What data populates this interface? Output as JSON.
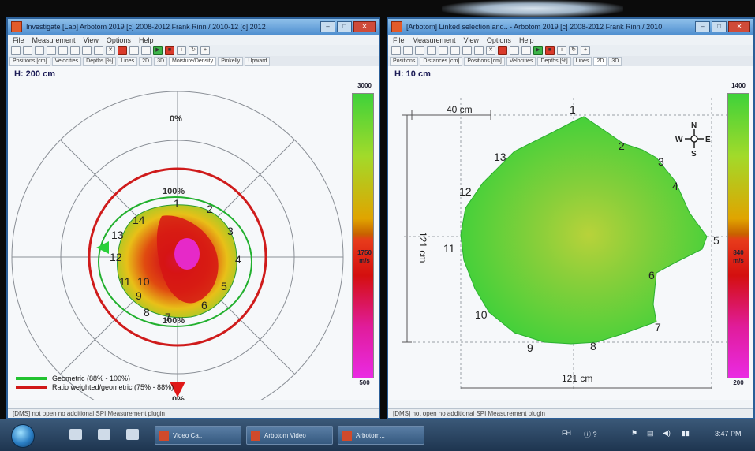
{
  "left_window": {
    "title": "Investigate [Lab] Arbotom 2019 [c] 2008-2012 Frank Rinn / 2010-12 [c] 2012",
    "menu": [
      "File",
      "Measurement",
      "View",
      "Options",
      "Help"
    ],
    "tabs": [
      "Positions [cm]",
      "Velocities",
      "Depths [%]",
      "Lines",
      "2D",
      "3D",
      "Moisture/Density",
      "Pinkelly",
      "Upward"
    ],
    "height_label": "H: 200 cm",
    "scale_top": "3000",
    "scale_mid": "1750",
    "scale_unit": "m/s",
    "scale_bottom": "500",
    "ring_labels": {
      "outer": "0%",
      "inner_top": "100%",
      "inner_bottom": "100%",
      "bottom": "0%"
    },
    "sensor_numbers": [
      "1",
      "2",
      "3",
      "4",
      "5",
      "6",
      "7",
      "8",
      "9",
      "10",
      "11",
      "12",
      "13",
      "14"
    ],
    "legend": [
      {
        "label": "Geometric (88% - 100%)",
        "color": "#22c230"
      },
      {
        "label": "Ratio weighted/geometric (75% - 88%)",
        "color": "#d01818"
      }
    ],
    "status": "[DMS] not open no additional SPI Measurement plugin"
  },
  "right_window": {
    "title": "[Arbotom] Linked selection and.. - Arbotom 2019 [c] 2008-2012 Frank Rinn / 2010",
    "menu": [
      "File",
      "Measurement",
      "View",
      "Options",
      "Help"
    ],
    "tabs": [
      "Positions",
      "Distances [cm]",
      "Positions [cm]",
      "Velocities",
      "Depths [%]",
      "Lines",
      "2D",
      "3D"
    ],
    "height_label": "H: 10 cm",
    "width_top": "40 cm",
    "height_dim": "121 cm",
    "width_bottom": "121 cm",
    "scale_top": "1400",
    "scale_mid": "840",
    "scale_unit": "m/s",
    "scale_bottom": "200",
    "compass": {
      "n": "N",
      "s": "S",
      "e": "E",
      "w": "W"
    },
    "sensor_numbers": [
      "1",
      "2",
      "3",
      "4",
      "5",
      "6",
      "7",
      "8",
      "9",
      "10",
      "11",
      "12",
      "13"
    ],
    "status": "[DMS] not open no additional SPI Measurement plugin"
  },
  "taskbar": {
    "tasks": [
      "Video Ca..",
      "Arbotom Video",
      "Arbotom..."
    ],
    "tray_text": "FH",
    "clock": "3:47 PM"
  },
  "colors": {
    "accent_green": "#3fd23a",
    "accent_red": "#d01818",
    "window_frame": "#2b5f98"
  }
}
